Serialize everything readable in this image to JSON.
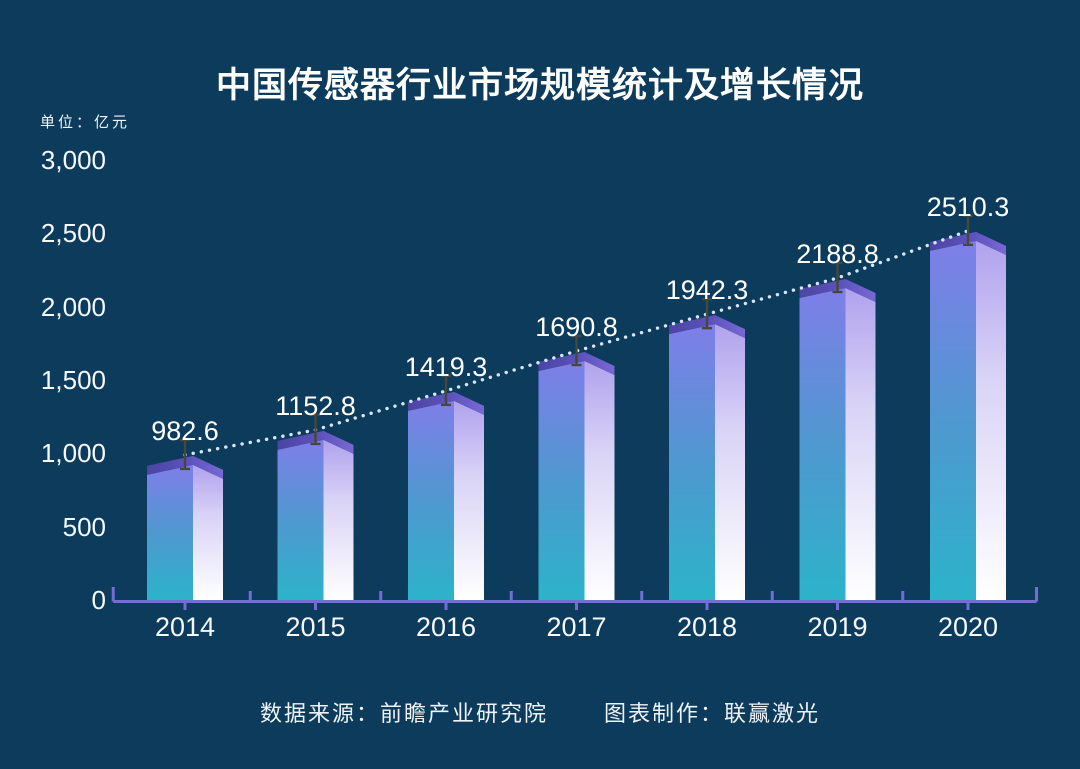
{
  "title": "中国传感器行业市场规模统计及增长情况",
  "unit_label": "单位：亿元",
  "footer": {
    "source": "数据来源：前瞻产业研究院",
    "maker": "图表制作：联赢激光"
  },
  "colors": {
    "background": "#0d3b5c",
    "bar_gradient_top": "#7f7ee8",
    "bar_gradient_mid": "#4f98d0",
    "bar_gradient_bottom": "#2cb3c9",
    "highlight_top": "#b0a2ee",
    "highlight_mid": "#d9d3f6",
    "highlight_bottom": "#ffffff",
    "cap_dark": "#4b45a2",
    "cap_mid": "#5d52bd",
    "cap_light": "#7968d3",
    "axis": "#756dd6",
    "trendline_dots": "#d6e5f8",
    "marker": "#45483a",
    "text": "#ffffff"
  },
  "chart_data": {
    "type": "bar",
    "title": "中国传感器行业市场规模统计及增长情况",
    "unit": "亿元",
    "categories": [
      "2014",
      "2015",
      "2016",
      "2017",
      "2018",
      "2019",
      "2020"
    ],
    "values": [
      982.6,
      1152.8,
      1419.3,
      1690.8,
      1942.3,
      2188.8,
      2510.3
    ],
    "ylim": [
      0,
      3000
    ],
    "ytick_step": 500,
    "ytick_labels_top_down": [
      "3,000",
      "2,500",
      "2,000",
      "1,500",
      "1,000",
      "500",
      "0"
    ],
    "xlabel": "",
    "ylabel": "亿元",
    "grid": "off",
    "legend": "none",
    "overlays": [
      "dotted-trendline-through-bar-tops",
      "error-bar-markers-at-bar-tops"
    ]
  }
}
